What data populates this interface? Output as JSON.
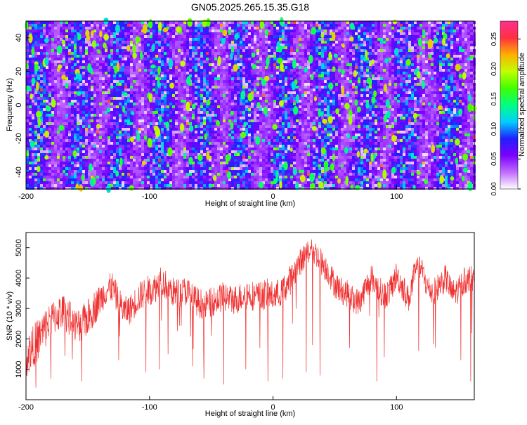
{
  "title": "GN05.2025.265.15.35.G18",
  "chart_data": [
    {
      "type": "heatmap",
      "xlabel": "Height of straight line (km)",
      "ylabel": "Frequency (Hz)",
      "xlim": [
        -200,
        163
      ],
      "ylim": [
        -50,
        50
      ],
      "xticks": [
        -200,
        -100,
        0,
        100
      ],
      "yticks": [
        -40,
        -20,
        0,
        20,
        40
      ],
      "colorbar": {
        "label": "Normalized spectral amplitude",
        "range": [
          0,
          0.28
        ],
        "ticks": [
          "0.00",
          "0.05",
          "0.10",
          "0.15",
          "0.20",
          "0.25"
        ],
        "colors": [
          "#ffffff",
          "#c06cff",
          "#7a00ff",
          "#2020ff",
          "#00d0ff",
          "#00ff80",
          "#40ff00",
          "#c0ff00",
          "#ffb000",
          "#ff3040",
          "#ff3090"
        ]
      },
      "grid": false
    },
    {
      "type": "line",
      "xlabel": "Height of straight line (km)",
      "ylabel": "SNR (10 * v/v)",
      "xlim": [
        -200,
        163
      ],
      "ylim": [
        0,
        5500
      ],
      "xticks": [
        -200,
        -100,
        0,
        100
      ],
      "yticks": [
        1000,
        2000,
        3000,
        4000,
        5000
      ],
      "color": "#f03030",
      "envelope": {
        "x": [
          -200,
          -195,
          -190,
          -185,
          -180,
          -175,
          -170,
          -165,
          -160,
          -155,
          -150,
          -145,
          -140,
          -135,
          -130,
          -125,
          -120,
          -115,
          -110,
          -105,
          -100,
          -95,
          -90,
          -85,
          -80,
          -75,
          -70,
          -65,
          -60,
          -55,
          -50,
          -45,
          -40,
          -35,
          -30,
          -25,
          -20,
          -15,
          -10,
          -5,
          0,
          5,
          10,
          15,
          20,
          25,
          30,
          35,
          40,
          45,
          50,
          55,
          60,
          65,
          70,
          75,
          80,
          85,
          90,
          95,
          100,
          105,
          110,
          115,
          120,
          125,
          130,
          135,
          140,
          145,
          150,
          155,
          160,
          163
        ],
        "center": [
          1400,
          1700,
          2000,
          2300,
          2600,
          2800,
          2900,
          2700,
          2400,
          2500,
          2700,
          3000,
          3300,
          3600,
          3700,
          3200,
          2900,
          3000,
          3300,
          3500,
          3600,
          3700,
          3900,
          3700,
          3500,
          3500,
          3600,
          3300,
          3200,
          3100,
          3200,
          3300,
          3400,
          3300,
          3300,
          3400,
          3500,
          3400,
          3400,
          3500,
          3400,
          3500,
          3700,
          4000,
          4400,
          4700,
          4900,
          4800,
          4500,
          4200,
          3800,
          3600,
          3500,
          3300,
          3200,
          3700,
          4000,
          3700,
          3400,
          3600,
          4100,
          3700,
          3300,
          4200,
          4300,
          3700,
          3500,
          3800,
          4000,
          3500,
          3600,
          3900,
          4000,
          3900
        ],
        "amplitude": [
          700,
          700,
          700,
          700,
          600,
          600,
          600,
          600,
          600,
          600,
          600,
          600,
          500,
          500,
          500,
          500,
          500,
          500,
          500,
          500,
          500,
          500,
          500,
          500,
          500,
          500,
          500,
          500,
          500,
          500,
          500,
          500,
          500,
          500,
          500,
          500,
          500,
          500,
          500,
          500,
          500,
          500,
          500,
          500,
          450,
          450,
          450,
          450,
          450,
          450,
          450,
          450,
          450,
          450,
          450,
          450,
          450,
          450,
          450,
          450,
          450,
          450,
          450,
          450,
          450,
          450,
          450,
          450,
          450,
          450,
          450,
          450,
          450,
          450
        ]
      },
      "dips": [
        {
          "x": -192,
          "y": 400
        },
        {
          "x": -180,
          "y": 700
        },
        {
          "x": -155,
          "y": 600
        },
        {
          "x": -125,
          "y": 1300
        },
        {
          "x": -103,
          "y": 900
        },
        {
          "x": -92,
          "y": 1000
        },
        {
          "x": -85,
          "y": 1500
        },
        {
          "x": -65,
          "y": 1100
        },
        {
          "x": -56,
          "y": 700
        },
        {
          "x": -40,
          "y": 500
        },
        {
          "x": -22,
          "y": 1000
        },
        {
          "x": -4,
          "y": 600
        },
        {
          "x": 8,
          "y": 700
        },
        {
          "x": 27,
          "y": 900
        },
        {
          "x": 32,
          "y": 1800
        },
        {
          "x": 38,
          "y": 800
        },
        {
          "x": 62,
          "y": 1700
        },
        {
          "x": 84,
          "y": 600
        },
        {
          "x": 90,
          "y": 1400
        },
        {
          "x": 118,
          "y": 1600
        },
        {
          "x": 152,
          "y": 1300
        },
        {
          "x": 160,
          "y": 600
        }
      ]
    }
  ]
}
